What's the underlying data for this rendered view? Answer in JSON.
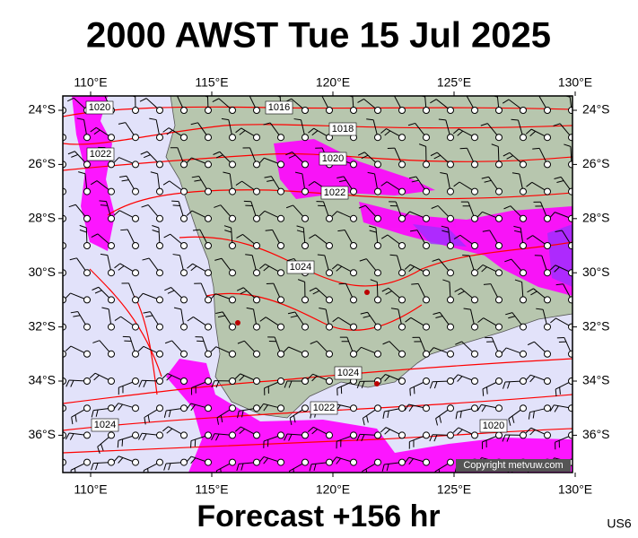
{
  "header": {
    "title": "2000 AWST Tue 15 Jul 2025"
  },
  "map": {
    "lon_labels": [
      {
        "value": 110,
        "label": "110°E"
      },
      {
        "value": 115,
        "label": "115°E"
      },
      {
        "value": 120,
        "label": "120°E"
      },
      {
        "value": 125,
        "label": "125°E"
      },
      {
        "value": 130,
        "label": "130°E"
      }
    ],
    "lat_labels": [
      {
        "value": 24,
        "label": "24°S"
      },
      {
        "value": 26,
        "label": "26°S"
      },
      {
        "value": 28,
        "label": "28°S"
      },
      {
        "value": 30,
        "label": "30°S"
      },
      {
        "value": 32,
        "label": "32°S"
      },
      {
        "value": 34,
        "label": "34°S"
      },
      {
        "value": 36,
        "label": "36°S"
      }
    ],
    "isobar_labels": [
      "1020",
      "1022",
      "1016",
      "1018",
      "1020",
      "1022",
      "1024",
      "1024",
      "1022",
      "1024",
      "1020"
    ],
    "copyright": "Copyright metvuw.com"
  },
  "footer": {
    "caption": "Forecast +156 hr",
    "code": "US6"
  }
}
